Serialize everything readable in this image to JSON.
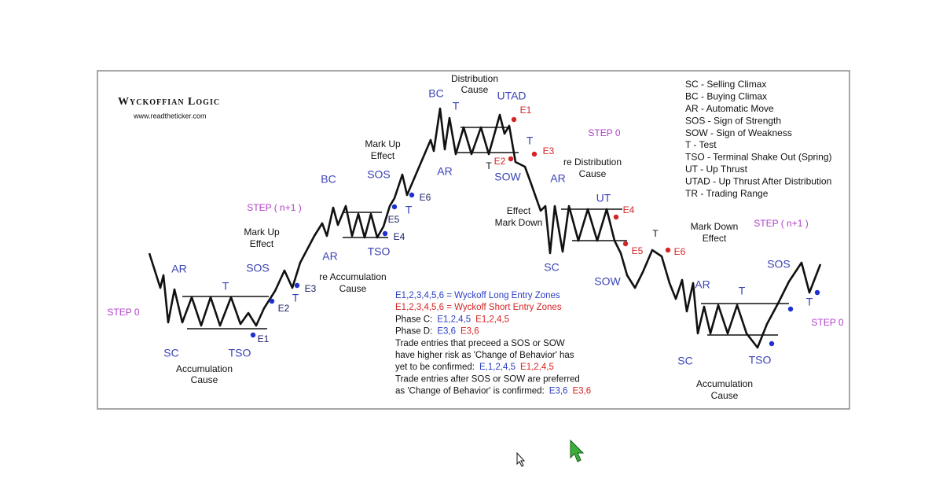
{
  "header": {
    "title": "Wyckoffian Logic",
    "url": "www.readtheticker.com"
  },
  "labels": [
    "AR",
    "SC",
    "T",
    "TSO",
    "SOS",
    "T",
    "BC",
    "AR",
    "SOS",
    "TSO",
    "T",
    "BC",
    "T",
    "AR",
    "UTAD",
    "T",
    "SOW",
    "T",
    "AR",
    "UT",
    "SC",
    "SOW",
    "T",
    "AR",
    "T",
    "SC",
    "TSO",
    "SOS",
    "T",
    "E1",
    "E2",
    "E3",
    "E4",
    "E5",
    "E6",
    "E1",
    "E3",
    "E2",
    "E4",
    "E5",
    "E6",
    "STEP 0",
    "STEP ( n+1 )",
    "STEP 0",
    "STEP ( n+1 )",
    "STEP 0",
    "Accumulation",
    "Cause",
    "Mark Up",
    "Effect",
    "re Accumulation",
    "Cause",
    "Mark Up",
    "Effect",
    "Distribution",
    "Cause",
    "re Distribution",
    "Cause",
    "Effect",
    "Mark Down",
    "Mark Down",
    "Effect",
    "Accumulation",
    "Cause"
  ],
  "notes": [
    [
      "E1,2,3,4,5,6 = Wyckoff Long Entry Zones"
    ],
    [
      "E1,2,3,4,5,6 = Wyckoff Short Entry Zones"
    ],
    [
      "Phase C:",
      "E1,2,4,5",
      "E1,2,4,5"
    ],
    [
      "Phase D:",
      "E3,6",
      "E3,6"
    ],
    [
      "Trade entries that preceed a SOS or SOW"
    ],
    [
      "have higher risk as 'Change of Behavior' has"
    ],
    [
      "yet to be confirmed:",
      "E,1,2,4,5",
      "E1,2,4,5"
    ],
    [
      "Trade entries after SOS or SOW are preferred"
    ],
    [
      " as 'Change of Behavior' is confirmed:",
      "E3,6",
      "E3,6"
    ]
  ],
  "legend": [
    "SC - Selling Climax",
    "BC - Buying Climax",
    "AR - Automatic Move",
    "SOS - Sign of Strength",
    "SOW - Sign of Weakness",
    "T - Test",
    "TSO - Terminal Shake Out (Spring)",
    "UT - Up Thrust",
    "UTAD - Up Thrust After Distribution",
    "TR - Trading Range"
  ]
}
